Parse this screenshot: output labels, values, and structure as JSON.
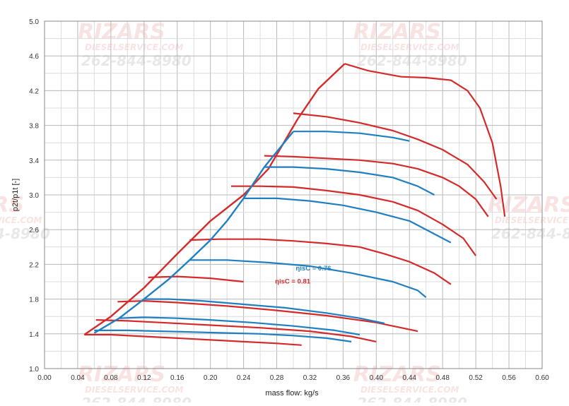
{
  "chart_data": {
    "type": "line",
    "title": "",
    "xlabel": "mass flow: kg/s",
    "ylabel": "p2t/p1t [-]",
    "xlim": [
      0.0,
      0.6
    ],
    "ylim": [
      1.0,
      5.0
    ],
    "x_ticks": [
      "0.00",
      "0.04",
      "0.08",
      "0.12",
      "0.16",
      "0.20",
      "0.24",
      "0.28",
      "0.32",
      "0.36",
      "0.40",
      "0.44",
      "0.48",
      "0.52",
      "0.56",
      "0.60"
    ],
    "y_ticks": [
      "1.0",
      "1.4",
      "1.8",
      "2.2",
      "2.6",
      "3.0",
      "3.4",
      "3.8",
      "4.2",
      "4.6",
      "5.0"
    ],
    "grid": true,
    "minor_grid": true,
    "annotations": [
      {
        "text": "ηisC = 0.76",
        "x": 0.303,
        "y": 2.13,
        "color": "#1f7fc0"
      },
      {
        "text": "ηisC = 0.81",
        "x": 0.278,
        "y": 1.98,
        "color": "#d42a2a"
      }
    ],
    "watermark": {
      "name": "RIZARS",
      "site": "DIESELSERVICE.COM",
      "phone": "262-844-8980"
    },
    "series": [
      {
        "color": "#d42a2a",
        "surge_line": [
          [
            0.048,
            1.39
          ],
          [
            0.08,
            1.6
          ],
          [
            0.12,
            1.93
          ],
          [
            0.16,
            2.32
          ],
          [
            0.2,
            2.7
          ],
          [
            0.24,
            3.0
          ],
          [
            0.27,
            3.3
          ],
          [
            0.305,
            3.87
          ],
          [
            0.33,
            4.22
          ],
          [
            0.362,
            4.51
          ]
        ],
        "speed_lines": [
          [
            [
              0.048,
              1.39
            ],
            [
              0.08,
              1.39
            ],
            [
              0.12,
              1.37
            ],
            [
              0.16,
              1.35
            ],
            [
              0.2,
              1.33
            ],
            [
              0.24,
              1.31
            ],
            [
              0.28,
              1.29
            ],
            [
              0.31,
              1.27
            ]
          ],
          [
            [
              0.062,
              1.56
            ],
            [
              0.1,
              1.55
            ],
            [
              0.14,
              1.53
            ],
            [
              0.2,
              1.5
            ],
            [
              0.26,
              1.47
            ],
            [
              0.32,
              1.43
            ],
            [
              0.37,
              1.37
            ],
            [
              0.4,
              1.31
            ]
          ],
          [
            [
              0.088,
              1.77
            ],
            [
              0.12,
              1.78
            ],
            [
              0.16,
              1.76
            ],
            [
              0.22,
              1.72
            ],
            [
              0.28,
              1.67
            ],
            [
              0.34,
              1.61
            ],
            [
              0.4,
              1.53
            ],
            [
              0.45,
              1.43
            ]
          ],
          [
            [
              0.125,
              2.05
            ],
            [
              0.16,
              2.06
            ],
            [
              0.2,
              2.04
            ],
            [
              0.24,
              2.0
            ],
            [
              0.275
            ],
            []
          ],
          [
            [
              0.175,
              2.48
            ],
            [
              0.21,
              2.49
            ],
            [
              0.26,
              2.49
            ],
            [
              0.3,
              2.47
            ],
            [
              0.34,
              2.44
            ],
            [
              0.38,
              2.4
            ],
            [
              0.41,
              2.32
            ],
            [
              0.44,
              2.23
            ],
            [
              0.47,
              2.1
            ],
            [
              0.49,
              1.97
            ]
          ],
          [
            [
              0.225,
              3.1
            ],
            [
              0.26,
              3.1
            ],
            [
              0.3,
              3.09
            ],
            [
              0.34,
              3.05
            ],
            [
              0.38,
              3.0
            ],
            [
              0.42,
              2.92
            ],
            [
              0.45,
              2.82
            ],
            [
              0.48,
              2.66
            ],
            [
              0.505,
              2.5
            ],
            [
              0.52,
              2.3
            ]
          ],
          [
            [
              0.265,
              3.45
            ],
            [
              0.3,
              3.44
            ],
            [
              0.34,
              3.42
            ],
            [
              0.38,
              3.4
            ],
            [
              0.42,
              3.36
            ],
            [
              0.45,
              3.3
            ],
            [
              0.48,
              3.2
            ],
            [
              0.5,
              3.1
            ],
            [
              0.52,
              2.95
            ],
            [
              0.535,
              2.75
            ]
          ],
          [
            [
              0.3,
              3.94
            ],
            [
              0.34,
              3.9
            ],
            [
              0.38,
              3.83
            ],
            [
              0.42,
              3.74
            ],
            [
              0.45,
              3.64
            ],
            [
              0.48,
              3.52
            ],
            [
              0.51,
              3.35
            ],
            [
              0.53,
              3.15
            ],
            [
              0.545,
              2.95
            ]
          ],
          [
            [
              0.362,
              4.51
            ],
            [
              0.39,
              4.43
            ],
            [
              0.43,
              4.36
            ],
            [
              0.46,
              4.35
            ],
            [
              0.49,
              4.32
            ],
            [
              0.51,
              4.2
            ],
            [
              0.525,
              4.0
            ],
            [
              0.54,
              3.6
            ],
            [
              0.55,
              3.1
            ],
            [
              0.555,
              2.75
            ]
          ]
        ]
      },
      {
        "color": "#1f7fc0",
        "surge_line": [
          [
            0.06,
            1.41
          ],
          [
            0.09,
            1.58
          ],
          [
            0.12,
            1.8
          ],
          [
            0.15,
            2.03
          ],
          [
            0.175,
            2.25
          ],
          [
            0.2,
            2.48
          ],
          [
            0.22,
            2.7
          ],
          [
            0.24,
            2.96
          ],
          [
            0.265,
            3.32
          ],
          [
            0.3,
            3.73
          ]
        ],
        "speed_lines": [
          [
            [
              0.06,
              1.44
            ],
            [
              0.1,
              1.44
            ],
            [
              0.14,
              1.43
            ],
            [
              0.18,
              1.42
            ],
            [
              0.22,
              1.41
            ],
            [
              0.26,
              1.4
            ],
            [
              0.3,
              1.38
            ],
            [
              0.34,
              1.35
            ],
            [
              0.37,
              1.31
            ]
          ],
          [
            [
              0.09,
              1.58
            ],
            [
              0.12,
              1.59
            ],
            [
              0.16,
              1.58
            ],
            [
              0.2,
              1.56
            ],
            [
              0.25,
              1.53
            ],
            [
              0.3,
              1.49
            ],
            [
              0.35,
              1.44
            ],
            [
              0.38,
              1.39
            ]
          ],
          [
            [
              0.12,
              1.8
            ],
            [
              0.15,
              1.8
            ],
            [
              0.19,
              1.78
            ],
            [
              0.24,
              1.74
            ],
            [
              0.29,
              1.7
            ],
            [
              0.34,
              1.64
            ],
            [
              0.38,
              1.58
            ],
            [
              0.41,
              1.52
            ]
          ],
          [
            [
              0.175,
              2.25
            ],
            [
              0.22,
              2.25
            ],
            [
              0.27,
              2.22
            ],
            [
              0.32,
              2.18
            ],
            [
              0.37,
              2.1
            ],
            [
              0.42,
              2.0
            ],
            [
              0.45,
              1.9
            ],
            [
              0.46,
              1.82
            ]
          ],
          [
            [
              0.24,
              2.96
            ],
            [
              0.28,
              2.96
            ],
            [
              0.32,
              2.93
            ],
            [
              0.36,
              2.88
            ],
            [
              0.4,
              2.8
            ],
            [
              0.44,
              2.7
            ],
            [
              0.47,
              2.55
            ],
            [
              0.49,
              2.45
            ]
          ],
          [
            [
              0.265,
              3.32
            ],
            [
              0.3,
              3.32
            ],
            [
              0.34,
              3.3
            ],
            [
              0.38,
              3.26
            ],
            [
              0.42,
              3.2
            ],
            [
              0.45,
              3.1
            ],
            [
              0.47,
              3.0
            ]
          ],
          [
            [
              0.3,
              3.73
            ],
            [
              0.34,
              3.73
            ],
            [
              0.38,
              3.71
            ],
            [
              0.42,
              3.66
            ],
            [
              0.44,
              3.62
            ]
          ]
        ]
      }
    ]
  }
}
